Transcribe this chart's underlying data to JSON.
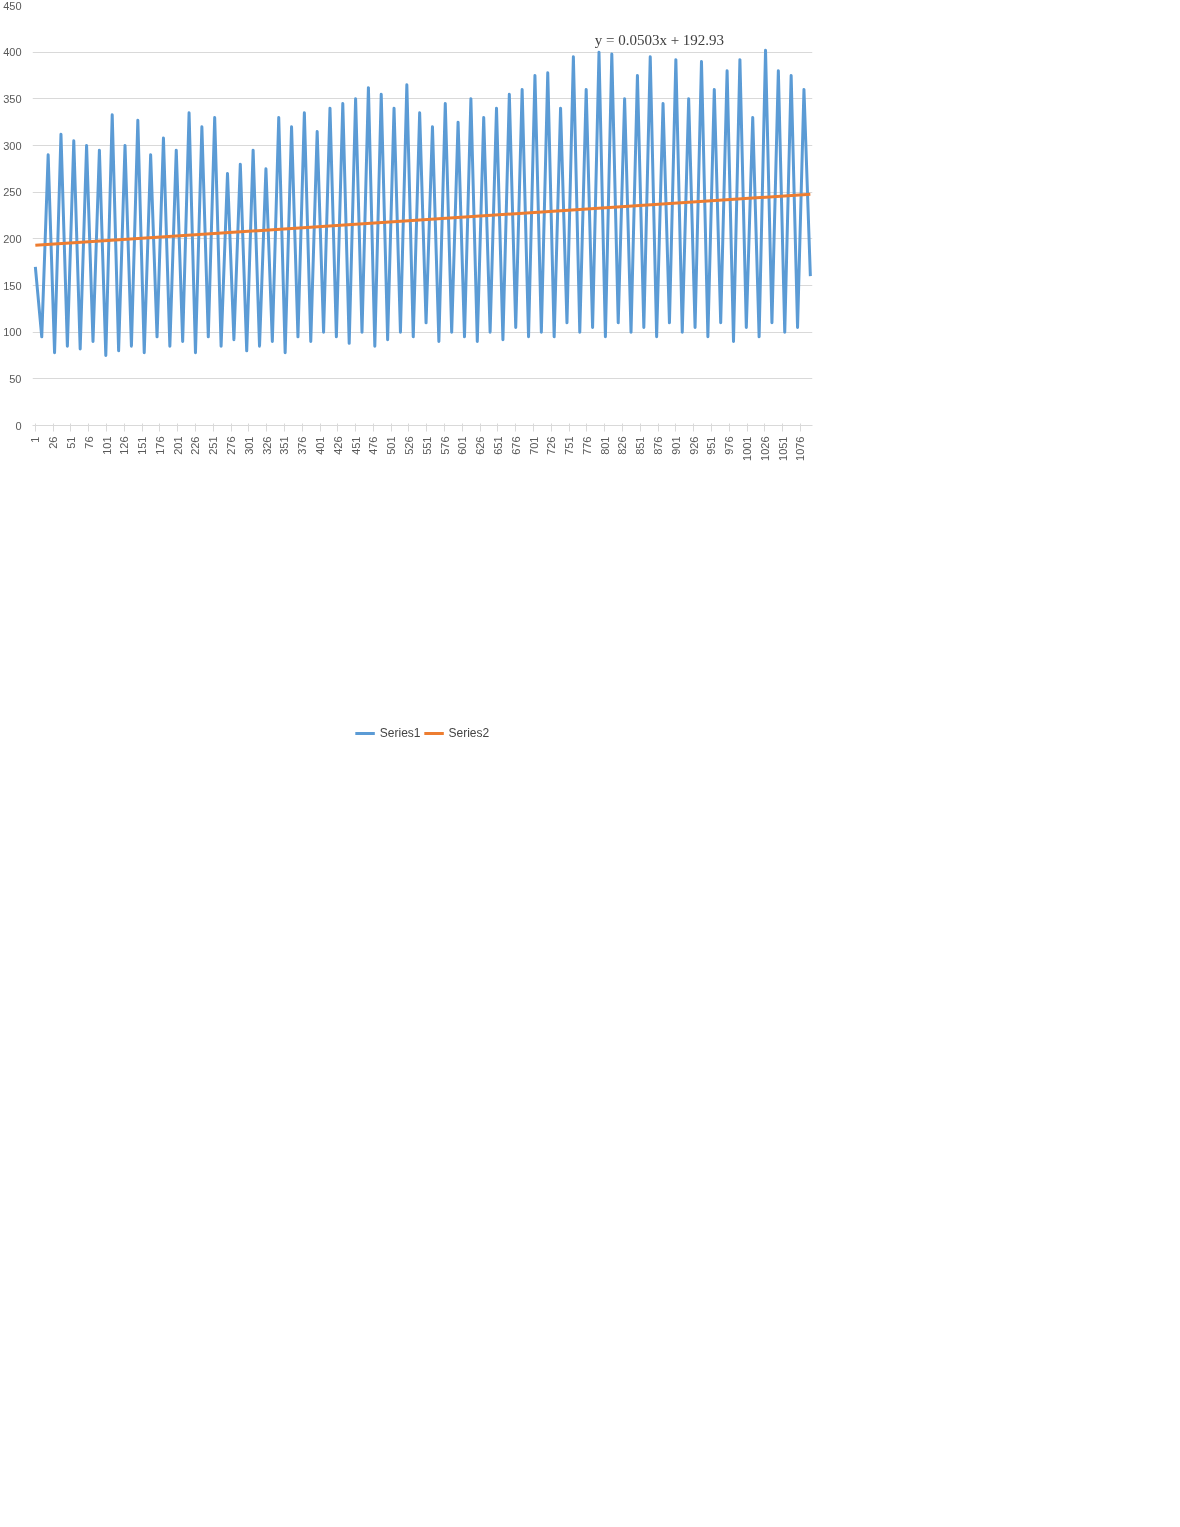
{
  "chart_data": {
    "type": "line",
    "annotations": [
      "y = 0.0503x + 192.93"
    ],
    "ylim": [
      0,
      450
    ],
    "yticks": [
      0,
      50,
      100,
      150,
      200,
      250,
      300,
      350,
      400,
      450
    ],
    "xlim": [
      -3,
      1093
    ],
    "xticks": [
      1,
      26,
      51,
      76,
      101,
      126,
      151,
      176,
      201,
      226,
      251,
      276,
      301,
      326,
      351,
      376,
      401,
      426,
      451,
      476,
      501,
      526,
      551,
      576,
      601,
      626,
      651,
      676,
      701,
      726,
      751,
      776,
      801,
      826,
      851,
      876,
      901,
      926,
      951,
      976,
      1001,
      1026,
      1051,
      1076
    ],
    "grid": "y",
    "legend": "bottom",
    "marker": "none",
    "line_style": "solid",
    "series": [
      {
        "name": "Series1",
        "color": "#5b9bd5",
        "x": [
          1,
          10,
          19,
          28,
          37,
          46,
          55,
          64,
          73,
          82,
          91,
          100,
          109,
          118,
          127,
          136,
          145,
          154,
          163,
          172,
          181,
          190,
          199,
          208,
          217,
          226,
          235,
          244,
          253,
          262,
          271,
          280,
          289,
          298,
          307,
          316,
          325,
          334,
          343,
          352,
          361,
          370,
          379,
          388,
          397,
          406,
          415,
          424,
          433,
          442,
          451,
          460,
          469,
          478,
          487,
          496,
          505,
          514,
          523,
          532,
          541,
          550,
          559,
          568,
          577,
          586,
          595,
          604,
          613,
          622,
          631,
          640,
          649,
          658,
          667,
          676,
          685,
          694,
          703,
          712,
          721,
          730,
          739,
          748,
          757,
          766,
          775,
          784,
          793,
          802,
          811,
          820,
          829,
          838,
          847,
          856,
          865,
          874,
          883,
          892,
          901,
          910,
          919,
          928,
          937,
          946,
          955,
          964,
          973,
          982,
          991,
          1000,
          1009,
          1018,
          1027,
          1036,
          1045,
          1054,
          1063,
          1072,
          1081,
          1090
        ],
        "values": [
          170,
          95,
          290,
          78,
          312,
          85,
          305,
          82,
          300,
          90,
          295,
          75,
          333,
          80,
          300,
          85,
          327,
          78,
          290,
          95,
          308,
          85,
          295,
          90,
          335,
          78,
          320,
          95,
          330,
          85,
          270,
          92,
          280,
          80,
          295,
          85,
          275,
          90,
          330,
          78,
          320,
          95,
          335,
          90,
          315,
          100,
          340,
          95,
          345,
          88,
          350,
          100,
          362,
          85,
          355,
          92,
          340,
          100,
          365,
          95,
          335,
          110,
          320,
          90,
          345,
          100,
          325,
          95,
          350,
          90,
          330,
          100,
          340,
          92,
          355,
          105,
          360,
          95,
          375,
          100,
          378,
          95,
          340,
          110,
          395,
          100,
          360,
          105,
          400,
          95,
          398,
          110,
          350,
          100,
          375,
          105,
          395,
          95,
          345,
          110,
          392,
          100,
          350,
          105,
          390,
          95,
          360,
          110,
          380,
          90,
          392,
          105,
          330,
          95,
          402,
          110,
          380,
          100,
          375,
          105,
          360,
          160
        ]
      },
      {
        "name": "Series2",
        "color": "#ed7d31",
        "x": [
          1,
          1090
        ],
        "values": [
          193.0,
          247.8
        ]
      }
    ]
  }
}
